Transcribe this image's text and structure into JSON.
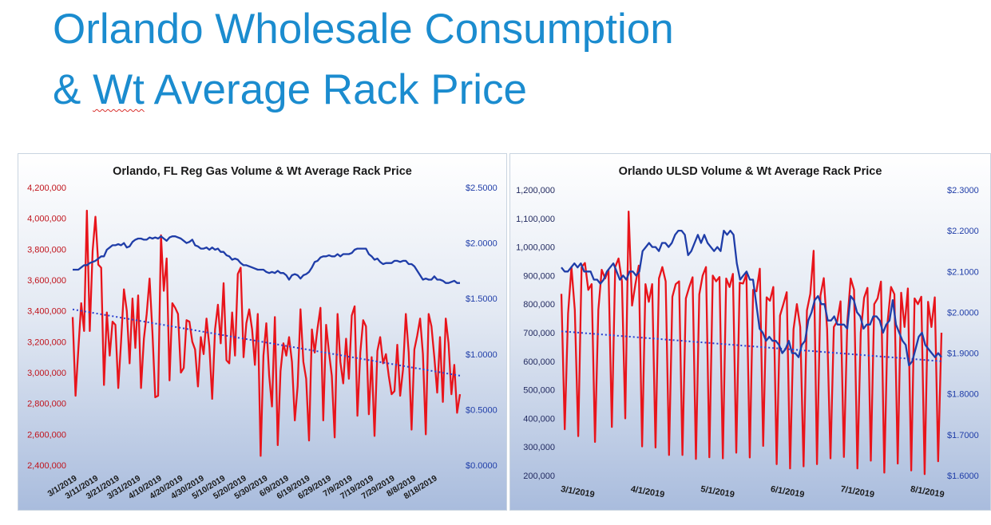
{
  "slide": {
    "title_line1": "Orlando Wholesale Consumption",
    "title_line2_prefix": "& ",
    "title_line2_flag": "Wt",
    "title_line2_rest": " Average Rack Price"
  },
  "colors": {
    "title": "#1b8ccf",
    "volume_series": "#e8141b",
    "price_series": "#1f3da8",
    "trend": "#2a3fd0",
    "left_axis_gas": "#c0121a",
    "left_axis_ulsd": "#222a60",
    "right_axis": "#1f3da8"
  },
  "chart_data": [
    {
      "type": "line",
      "title": "Orlando, FL Reg Gas Volume & Wt Average Rack Price",
      "y_left_ticks": [
        "4,200,000",
        "4,000,000",
        "3,800,000",
        "3,600,000",
        "3,400,000",
        "3,200,000",
        "3,000,000",
        "2,800,000",
        "2,600,000",
        "2,400,000"
      ],
      "y_right_ticks": [
        "$2.5000",
        "$2.0000",
        "$1.5000",
        "$1.0000",
        "$0.5000",
        "$0.0000"
      ],
      "x_ticks": [
        "3/1/2019",
        "3/11/2019",
        "3/21/2019",
        "3/31/2019",
        "4/10/2019",
        "4/20/2019",
        "4/30/2019",
        "5/10/2019",
        "5/20/2019",
        "5/30/2019",
        "6/9/2019",
        "6/19/2019",
        "6/29/2019",
        "7/9/2019",
        "7/19/2019",
        "7/29/2019",
        "8/8/2019",
        "8/18/2019"
      ],
      "ylim_left": [
        2400000,
        4200000
      ],
      "ylim_right": [
        0,
        2.5
      ],
      "series": [
        {
          "axis": "left",
          "values": [
            3360000,
            2850000,
            3150000,
            3450000,
            3270000,
            4050000,
            3270000,
            3790000,
            4010000,
            3700000,
            3680000,
            2920000,
            3390000,
            3110000,
            3330000,
            3310000,
            2900000,
            3200000,
            3540000,
            3400000,
            3060000,
            3480000,
            3160000,
            3500000,
            2900000,
            3220000,
            3380000,
            3610000,
            3260000,
            2840000,
            2850000,
            3890000,
            3530000,
            3740000,
            2950000,
            3450000,
            3420000,
            3380000,
            3000000,
            3030000,
            3340000,
            3330000,
            3200000,
            3150000,
            2910000,
            3230000,
            3120000,
            3350000,
            3170000,
            2830000,
            3280000,
            3440000,
            3190000,
            3580000,
            3080000,
            3060000,
            3390000,
            3110000,
            3640000,
            3680000,
            3100000,
            3320000,
            3410000,
            3280000,
            3050000,
            3380000,
            2460000,
            3110000,
            3320000,
            2980000,
            2780000,
            3360000,
            2530000,
            3010000,
            3190000,
            3110000,
            3230000,
            3070000,
            2690000,
            2910000,
            3410000,
            3070000,
            2960000,
            2560000,
            3280000,
            3130000,
            3290000,
            3420000,
            2690000,
            3310000,
            3130000,
            2980000,
            2580000,
            3380000,
            3070000,
            2930000,
            3220000,
            2960000,
            3370000,
            3430000,
            2720000,
            3130000,
            3340000,
            3300000,
            2730000,
            3100000,
            2590000,
            3140000,
            3230000,
            3060000,
            3120000,
            2980000,
            2860000,
            2880000,
            3180000,
            2850000,
            3020000,
            3380000,
            3130000,
            2630000,
            3150000,
            3240000,
            3350000,
            3120000,
            2600000,
            3380000,
            3300000,
            3100000,
            2870000,
            3230000,
            2810000,
            3350000,
            3190000,
            2860000,
            3050000,
            2740000,
            2860000
          ]
        },
        {
          "axis": "right",
          "values": [
            1.76,
            1.76,
            1.76,
            1.78,
            1.8,
            1.8,
            1.82,
            1.83,
            1.84,
            1.86,
            1.88,
            1.88,
            1.94,
            1.96,
            1.98,
            1.98,
            1.99,
            1.98,
            2.0,
            1.96,
            1.97,
            2.01,
            2.03,
            2.04,
            2.04,
            2.03,
            2.03,
            2.05,
            2.04,
            2.05,
            2.04,
            2.06,
            2.04,
            2.02,
            2.05,
            2.06,
            2.06,
            2.05,
            2.04,
            2.02,
            2.0,
            2.01,
            2.03,
            1.98,
            1.97,
            1.95,
            1.95,
            1.96,
            1.94,
            1.96,
            1.94,
            1.95,
            1.92,
            1.92,
            1.89,
            1.88,
            1.85,
            1.86,
            1.85,
            1.82,
            1.8,
            1.8,
            1.79,
            1.78,
            1.77,
            1.76,
            1.76,
            1.76,
            1.74,
            1.73,
            1.74,
            1.73,
            1.75,
            1.73,
            1.73,
            1.71,
            1.67,
            1.71,
            1.72,
            1.71,
            1.68,
            1.71,
            1.72,
            1.74,
            1.78,
            1.83,
            1.84,
            1.87,
            1.88,
            1.88,
            1.89,
            1.88,
            1.88,
            1.9,
            1.88,
            1.9,
            1.9,
            1.9,
            1.91,
            1.94,
            1.95,
            1.95,
            1.95,
            1.95,
            1.9,
            1.88,
            1.85,
            1.86,
            1.83,
            1.81,
            1.82,
            1.82,
            1.82,
            1.84,
            1.84,
            1.83,
            1.84,
            1.84,
            1.81,
            1.81,
            1.79,
            1.75,
            1.71,
            1.67,
            1.68,
            1.67,
            1.67,
            1.7,
            1.67,
            1.67,
            1.66,
            1.64,
            1.64,
            1.65,
            1.66,
            1.64,
            1.64
          ]
        },
        {
          "axis": "left",
          "style": "trend",
          "values": [
            3410000,
            2980000
          ]
        }
      ]
    },
    {
      "type": "line",
      "title": "Orlando ULSD Volume & Wt Average Rack Price",
      "y_left_ticks": [
        "1,200,000",
        "1,100,000",
        "1,000,000",
        "900,000",
        "800,000",
        "700,000",
        "600,000",
        "500,000",
        "400,000",
        "300,000",
        "200,000"
      ],
      "y_right_ticks": [
        "$2.3000",
        "$2.2000",
        "$2.1000",
        "$2.0000",
        "$1.9000",
        "$1.8000",
        "$1.7000",
        "$1.6000"
      ],
      "x_ticks": [
        "3/1/2019",
        "4/1/2019",
        "5/1/2019",
        "6/1/2019",
        "7/1/2019",
        "8/1/2019"
      ],
      "ylim_left": [
        200000,
        1200000
      ],
      "ylim_right": [
        1.6,
        2.3
      ],
      "series": [
        {
          "axis": "left",
          "values": [
            836000,
            362000,
            768000,
            930000,
            780000,
            338000,
            930000,
            944000,
            850000,
            870000,
            318000,
            780000,
            920000,
            890000,
            920000,
            370000,
            930000,
            960000,
            880000,
            400000,
            1124000,
            795000,
            870000,
            935000,
            302000,
            870000,
            808000,
            870000,
            298000,
            890000,
            930000,
            880000,
            272000,
            826000,
            870000,
            880000,
            272000,
            820000,
            860000,
            894000,
            258000,
            834000,
            900000,
            930000,
            264000,
            900000,
            880000,
            895000,
            260000,
            890000,
            860000,
            906000,
            280000,
            875000,
            872000,
            905000,
            263000,
            850000,
            845000,
            924000,
            304000,
            824000,
            812000,
            860000,
            240000,
            760000,
            800000,
            842000,
            225000,
            712000,
            800000,
            720000,
            232000,
            778000,
            836000,
            987000,
            240000,
            830000,
            891000,
            712000,
            260000,
            720000,
            740000,
            810000,
            265000,
            740000,
            890000,
            850000,
            225000,
            700000,
            822000,
            857000,
            252000,
            800000,
            820000,
            879000,
            210000,
            740000,
            860000,
            835000,
            242000,
            840000,
            720000,
            855000,
            218000,
            820000,
            800000,
            826000,
            205000,
            808000,
            720000,
            824000,
            250000,
            700000
          ],
          "trend": [
            705000,
            600000
          ]
        },
        {
          "axis": "right",
          "values": [
            2.11,
            2.1,
            2.1,
            2.11,
            2.12,
            2.11,
            2.12,
            2.1,
            2.1,
            2.1,
            2.08,
            2.08,
            2.07,
            2.08,
            2.1,
            2.11,
            2.12,
            2.1,
            2.08,
            2.09,
            2.08,
            2.1,
            2.1,
            2.09,
            2.1,
            2.15,
            2.16,
            2.17,
            2.16,
            2.16,
            2.15,
            2.17,
            2.17,
            2.16,
            2.17,
            2.19,
            2.2,
            2.2,
            2.19,
            2.14,
            2.15,
            2.17,
            2.19,
            2.17,
            2.19,
            2.17,
            2.16,
            2.15,
            2.16,
            2.15,
            2.2,
            2.19,
            2.2,
            2.19,
            2.12,
            2.08,
            2.09,
            2.1,
            2.08,
            2.08,
            2.02,
            1.96,
            1.95,
            1.93,
            1.94,
            1.93,
            1.93,
            1.92,
            1.9,
            1.91,
            1.93,
            1.9,
            1.9,
            1.89,
            1.92,
            1.93,
            1.98,
            2.0,
            2.03,
            2.04,
            2.02,
            2.02,
            1.98,
            1.98,
            1.99,
            1.97,
            1.97,
            1.97,
            1.96,
            2.04,
            2.03,
            2.0,
            1.99,
            1.96,
            1.97,
            1.97,
            1.99,
            1.99,
            1.98,
            1.95,
            1.97,
            1.98,
            2.03,
            1.97,
            1.95,
            1.93,
            1.92,
            1.87,
            1.88,
            1.91,
            1.94,
            1.95,
            1.92,
            1.91,
            1.9,
            1.89,
            1.9,
            1.89
          ]
        }
      ]
    }
  ]
}
